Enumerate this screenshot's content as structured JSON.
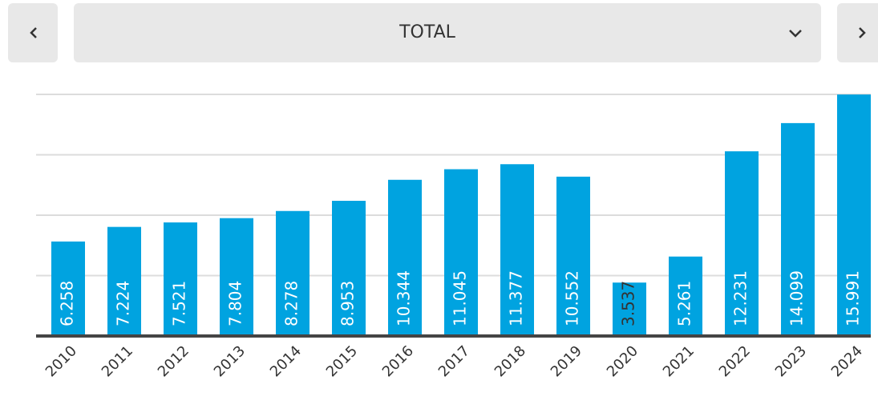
{
  "selector": "TOTAL",
  "chart_data": {
    "type": "bar",
    "categories": [
      "2010",
      "2011",
      "2012",
      "2013",
      "2014",
      "2015",
      "2016",
      "2017",
      "2018",
      "2019",
      "2020",
      "2021",
      "2022",
      "2023",
      "2024"
    ],
    "values": [
      6.258,
      7.224,
      7.521,
      7.804,
      8.278,
      8.953,
      10.344,
      11.045,
      11.377,
      10.552,
      3.537,
      5.261,
      12.231,
      14.099,
      15.991
    ],
    "color": "#00a3e0",
    "ylim": [
      0,
      16
    ],
    "yticks": [
      0,
      4,
      8,
      12,
      16
    ],
    "grid": true
  }
}
